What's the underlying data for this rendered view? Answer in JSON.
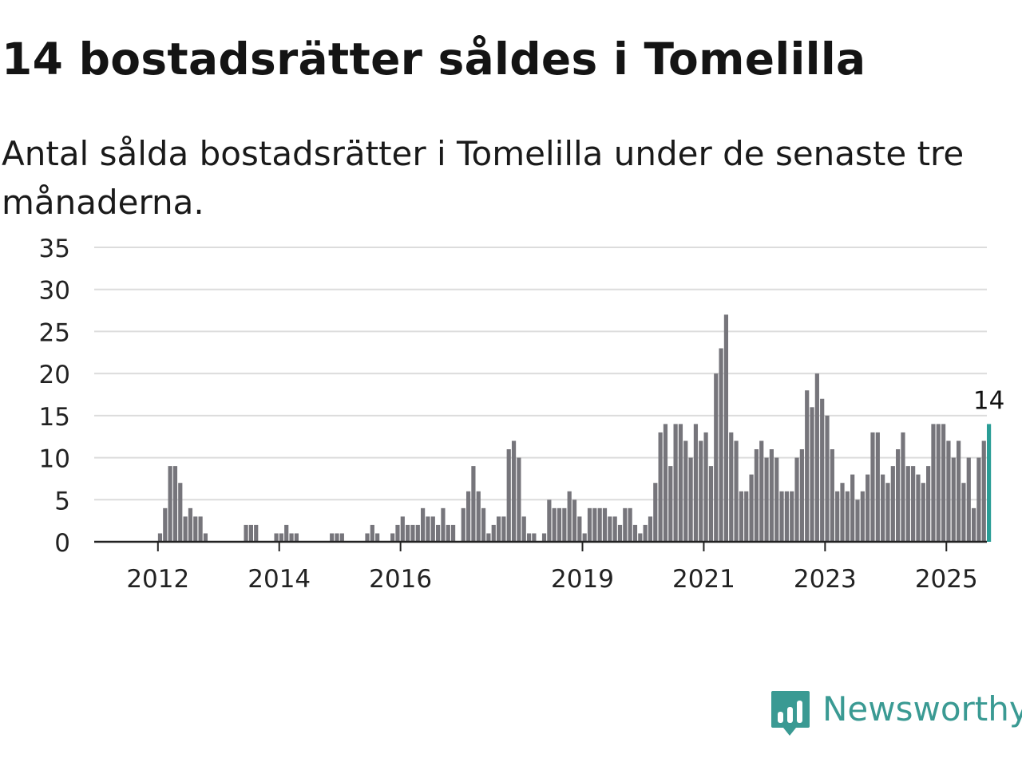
{
  "title": "14 bostadsrätter såldes i Tomelilla",
  "subtitle": "Antal sålda bostadsrätter i Tomelilla under de senaste tre månaderna.",
  "brand": {
    "name": "Newsworthy",
    "icon": "newsworthy-logo-icon",
    "color": "#3a9a93"
  },
  "chart_data": {
    "type": "bar",
    "title": "14 bostadsrätter såldes i Tomelilla",
    "subtitle": "Antal sålda bostadsrätter i Tomelilla under de senaste tre månaderna.",
    "start": "2011-01",
    "frequency": "monthly",
    "values": [
      0,
      0,
      0,
      0,
      0,
      0,
      0,
      0,
      0,
      0,
      0,
      0,
      1,
      4,
      9,
      9,
      7,
      3,
      4,
      3,
      3,
      1,
      0,
      0,
      0,
      0,
      0,
      0,
      0,
      2,
      2,
      2,
      0,
      0,
      0,
      1,
      1,
      2,
      1,
      1,
      0,
      0,
      0,
      0,
      0,
      0,
      1,
      1,
      1,
      0,
      0,
      0,
      0,
      1,
      2,
      1,
      0,
      0,
      1,
      2,
      3,
      2,
      2,
      2,
      4,
      3,
      3,
      2,
      4,
      2,
      2,
      0,
      4,
      6,
      9,
      6,
      4,
      1,
      2,
      3,
      3,
      11,
      12,
      10,
      3,
      1,
      1,
      0,
      1,
      5,
      4,
      4,
      4,
      6,
      5,
      3,
      1,
      4,
      4,
      4,
      4,
      3,
      3,
      2,
      4,
      4,
      2,
      1,
      2,
      3,
      7,
      13,
      14,
      9,
      14,
      14,
      12,
      10,
      14,
      12,
      13,
      9,
      20,
      23,
      27,
      13,
      12,
      6,
      6,
      8,
      11,
      12,
      10,
      11,
      10,
      6,
      6,
      6,
      10,
      11,
      18,
      16,
      20,
      17,
      15,
      11,
      6,
      7,
      6,
      8,
      5,
      6,
      8,
      13,
      13,
      8,
      7,
      9,
      11,
      13,
      9,
      9,
      8,
      7,
      9,
      14,
      14,
      14,
      12,
      10,
      12,
      7,
      10,
      4,
      10,
      12,
      14
    ],
    "highlight": {
      "index": 176,
      "label": "14",
      "color": "#2a9d96"
    },
    "bar_color": "#76757b",
    "x_ticks": [
      {
        "label": "2012",
        "index": 12
      },
      {
        "label": "2014",
        "index": 36
      },
      {
        "label": "2016",
        "index": 60
      },
      {
        "label": "2019",
        "index": 96
      },
      {
        "label": "2021",
        "index": 120
      },
      {
        "label": "2023",
        "index": 144
      },
      {
        "label": "2025",
        "index": 168
      }
    ],
    "y_ticks": [
      0,
      5,
      10,
      15,
      20,
      25,
      30,
      35
    ],
    "ylim": [
      0,
      35
    ],
    "grid": true,
    "xlabel": "",
    "ylabel": ""
  }
}
